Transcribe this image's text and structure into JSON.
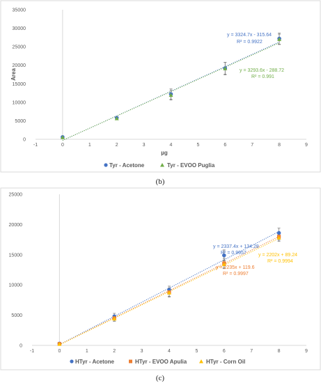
{
  "chart_data": [
    {
      "type": "scatter",
      "caption": "(b)",
      "xlabel": "µg",
      "ylabel": "Area",
      "xlim": [
        -1,
        9
      ],
      "ylim": [
        0,
        35000
      ],
      "xticks": [
        -1,
        0,
        1,
        2,
        3,
        4,
        5,
        6,
        7,
        8,
        9
      ],
      "yticks": [
        0,
        5000,
        10000,
        15000,
        20000,
        25000,
        30000,
        35000
      ],
      "legend_position": "bottom",
      "grid": false,
      "series": [
        {
          "name": "Tyr - Acetone",
          "color": "#4472c4",
          "marker": "circle",
          "x": [
            0,
            2,
            4,
            6,
            8
          ],
          "y": [
            600,
            5800,
            12200,
            19200,
            27200
          ],
          "err": [
            0,
            300,
            1400,
            1600,
            1500
          ],
          "trendline": {
            "slope": 3324.7,
            "intercept": -315.64,
            "equation": "y = 3324.7x - 315.64",
            "r2": "R² = 0.9922"
          }
        },
        {
          "name": "Tyr - EVOO Puglia",
          "color": "#70ad47",
          "marker": "triangle",
          "x": [
            0,
            2,
            4,
            6,
            8
          ],
          "y": [
            500,
            5600,
            11900,
            19100,
            27000
          ],
          "err": [
            0,
            300,
            1300,
            1700,
            1400
          ],
          "trendline": {
            "slope": 3293.6,
            "intercept": -288.72,
            "equation": "y = 3293.6x - 288.72",
            "r2": "R² = 0.991"
          }
        }
      ]
    },
    {
      "type": "scatter",
      "caption": "(c)",
      "xlabel": "",
      "ylabel": "",
      "xlim": [
        -1,
        9
      ],
      "ylim": [
        0,
        25000
      ],
      "xticks": [
        -1,
        0,
        1,
        2,
        3,
        4,
        5,
        6,
        7,
        8,
        9
      ],
      "yticks": [
        0,
        5000,
        10000,
        15000,
        20000,
        25000
      ],
      "legend_position": "bottom",
      "grid": false,
      "series": [
        {
          "name": "HTyr - Acetone",
          "color": "#4472c4",
          "marker": "circle",
          "x": [
            0,
            2,
            4,
            6,
            8
          ],
          "y": [
            300,
            4800,
            9200,
            14900,
            18600
          ],
          "err": [
            0,
            500,
            600,
            900,
            800
          ],
          "trendline": {
            "slope": 2337.4,
            "intercept": 134.28,
            "equation": "y = 2337.4x + 134.28",
            "r2": "R² = 0.9957"
          }
        },
        {
          "name": "HTyr - EVOO Apulia",
          "color": "#ed7d31",
          "marker": "square",
          "x": [
            0,
            2,
            4,
            6,
            8
          ],
          "y": [
            250,
            4500,
            8800,
            13600,
            18000
          ],
          "err": [
            0,
            500,
            700,
            800,
            600
          ],
          "trendline": {
            "slope": 2235,
            "intercept": 119.6,
            "equation": "y = 2235x + 119.6",
            "r2": "R² = 0.9997"
          }
        },
        {
          "name": "HTyr - Corn Oil",
          "color": "#ffc000",
          "marker": "triangle",
          "x": [
            0,
            2,
            4,
            6,
            8
          ],
          "y": [
            200,
            4400,
            8700,
            13400,
            17800
          ],
          "err": [
            0,
            400,
            700,
            700,
            600
          ],
          "trendline": {
            "slope": 2202,
            "intercept": 89.24,
            "equation": "y = 2202x + 89.24",
            "r2": "R² = 0.9994"
          }
        }
      ]
    }
  ]
}
